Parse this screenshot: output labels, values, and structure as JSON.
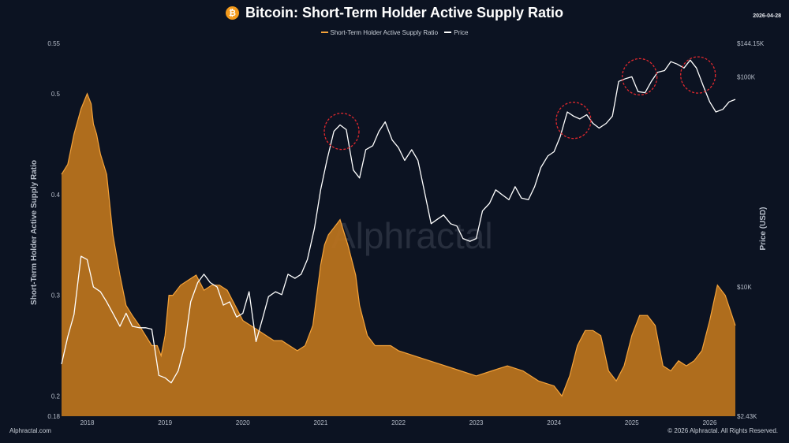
{
  "header": {
    "title": "Bitcoin: Short-Term Holder Active Supply Ratio",
    "icon": "bitcoin-icon",
    "date": "2026-04-28"
  },
  "footer": {
    "source": "Alphractal.com",
    "copyright": "© 2026 Alphractal. All Rights Reserved."
  },
  "watermark": "Alphractal",
  "colors": {
    "background": "#0c1322",
    "ratio_fill": "#b8721e",
    "ratio_line": "#f5a33a",
    "price_line": "#ffffff",
    "highlight": "#e0282e"
  },
  "chart_data": {
    "type": "area",
    "title": "Bitcoin: Short-Term Holder Active Supply Ratio",
    "legend": [
      "Short-Term Holder Active Supply Ratio",
      "Price"
    ],
    "legend_position": "top-center",
    "x_ticks": [
      "2018",
      "2019",
      "2020",
      "2021",
      "2022",
      "2023",
      "2024",
      "2025",
      "2026"
    ],
    "xlim": [
      2017.67,
      2026.33
    ],
    "left_axis": {
      "label": "Short-Term Holder Active Supply Ratio",
      "ylim": [
        0.18,
        0.55
      ],
      "ticks": [
        {
          "value": 0.55,
          "label": "0.55"
        },
        {
          "value": 0.5,
          "label": "0.5"
        },
        {
          "value": 0.4,
          "label": "0.4"
        },
        {
          "value": 0.3,
          "label": "0.3"
        },
        {
          "value": 0.2,
          "label": "0.2"
        },
        {
          "value": 0.18,
          "label": "0.18"
        }
      ]
    },
    "right_axis": {
      "label": "Price (USD)",
      "scale": "log",
      "ylim": [
        2430,
        144150
      ],
      "ticks": [
        {
          "value": 144150,
          "label": "$144.15K"
        },
        {
          "value": 100000,
          "label": "$100K"
        },
        {
          "value": 10000,
          "label": "$10K"
        },
        {
          "value": 2430,
          "label": "$2.43K"
        }
      ]
    },
    "series": [
      {
        "name": "Short-Term Holder Active Supply Ratio",
        "axis": "left",
        "x": [
          2017.67,
          2017.75,
          2017.83,
          2017.92,
          2018.0,
          2018.05,
          2018.08,
          2018.12,
          2018.17,
          2018.25,
          2018.33,
          2018.42,
          2018.5,
          2018.58,
          2018.67,
          2018.75,
          2018.83,
          2018.9,
          2018.95,
          2019.0,
          2019.05,
          2019.1,
          2019.2,
          2019.3,
          2019.4,
          2019.5,
          2019.6,
          2019.7,
          2019.8,
          2019.9,
          2020.0,
          2020.1,
          2020.2,
          2020.3,
          2020.4,
          2020.5,
          2020.6,
          2020.7,
          2020.8,
          2020.9,
          2021.0,
          2021.05,
          2021.1,
          2021.2,
          2021.25,
          2021.35,
          2021.45,
          2021.5,
          2021.6,
          2021.7,
          2021.8,
          2021.9,
          2022.0,
          2022.2,
          2022.4,
          2022.6,
          2022.8,
          2023.0,
          2023.2,
          2023.4,
          2023.6,
          2023.8,
          2024.0,
          2024.1,
          2024.2,
          2024.3,
          2024.4,
          2024.5,
          2024.6,
          2024.7,
          2024.8,
          2024.9,
          2025.0,
          2025.1,
          2025.2,
          2025.3,
          2025.4,
          2025.5,
          2025.6,
          2025.7,
          2025.8,
          2025.9,
          2026.0,
          2026.1,
          2026.2,
          2026.33
        ],
        "values": [
          0.42,
          0.43,
          0.46,
          0.485,
          0.5,
          0.49,
          0.47,
          0.46,
          0.44,
          0.42,
          0.36,
          0.32,
          0.29,
          0.28,
          0.27,
          0.26,
          0.25,
          0.25,
          0.24,
          0.26,
          0.3,
          0.3,
          0.31,
          0.315,
          0.32,
          0.305,
          0.31,
          0.31,
          0.305,
          0.29,
          0.275,
          0.27,
          0.265,
          0.26,
          0.255,
          0.255,
          0.25,
          0.245,
          0.25,
          0.27,
          0.33,
          0.35,
          0.36,
          0.37,
          0.375,
          0.35,
          0.32,
          0.29,
          0.26,
          0.25,
          0.25,
          0.25,
          0.245,
          0.24,
          0.235,
          0.23,
          0.225,
          0.22,
          0.225,
          0.23,
          0.225,
          0.215,
          0.21,
          0.2,
          0.22,
          0.25,
          0.265,
          0.265,
          0.26,
          0.225,
          0.215,
          0.23,
          0.26,
          0.28,
          0.28,
          0.27,
          0.23,
          0.225,
          0.235,
          0.23,
          0.235,
          0.245,
          0.275,
          0.31,
          0.3,
          0.27
        ]
      },
      {
        "name": "Price",
        "axis": "right",
        "x": [
          2017.67,
          2017.75,
          2017.83,
          2017.92,
          2018.0,
          2018.08,
          2018.17,
          2018.25,
          2018.33,
          2018.42,
          2018.5,
          2018.58,
          2018.67,
          2018.75,
          2018.83,
          2018.92,
          2019.0,
          2019.08,
          2019.17,
          2019.25,
          2019.33,
          2019.42,
          2019.5,
          2019.58,
          2019.67,
          2019.75,
          2019.83,
          2019.92,
          2020.0,
          2020.08,
          2020.17,
          2020.25,
          2020.33,
          2020.42,
          2020.5,
          2020.58,
          2020.67,
          2020.75,
          2020.83,
          2020.92,
          2021.0,
          2021.08,
          2021.17,
          2021.25,
          2021.33,
          2021.42,
          2021.5,
          2021.58,
          2021.67,
          2021.75,
          2021.83,
          2021.92,
          2022.0,
          2022.08,
          2022.17,
          2022.25,
          2022.33,
          2022.42,
          2022.5,
          2022.58,
          2022.67,
          2022.75,
          2022.83,
          2022.92,
          2023.0,
          2023.08,
          2023.17,
          2023.25,
          2023.33,
          2023.42,
          2023.5,
          2023.58,
          2023.67,
          2023.75,
          2023.83,
          2023.92,
          2024.0,
          2024.08,
          2024.17,
          2024.25,
          2024.33,
          2024.42,
          2024.5,
          2024.58,
          2024.67,
          2024.75,
          2024.83,
          2024.92,
          2025.0,
          2025.08,
          2025.17,
          2025.25,
          2025.33,
          2025.42,
          2025.5,
          2025.58,
          2025.67,
          2025.75,
          2025.83,
          2025.92,
          2026.0,
          2026.08,
          2026.17,
          2026.25,
          2026.33
        ],
        "values": [
          4300,
          5800,
          7400,
          14000,
          13500,
          10000,
          9500,
          8500,
          7500,
          6500,
          7500,
          6500,
          6400,
          6400,
          6300,
          3800,
          3700,
          3500,
          4000,
          5200,
          8500,
          10500,
          11500,
          10500,
          10000,
          8200,
          8500,
          7200,
          7500,
          9500,
          5500,
          7000,
          9000,
          9500,
          9200,
          11500,
          11000,
          11500,
          13500,
          19000,
          29000,
          40000,
          55000,
          59000,
          56000,
          36000,
          33000,
          45000,
          47000,
          55000,
          61000,
          50000,
          46000,
          40000,
          45000,
          40000,
          29000,
          20000,
          21000,
          22000,
          20000,
          19500,
          17000,
          16500,
          17000,
          23000,
          25000,
          29000,
          27500,
          26000,
          30000,
          26500,
          26000,
          30000,
          37000,
          42000,
          44000,
          52000,
          68000,
          65000,
          63000,
          66000,
          60000,
          57000,
          60000,
          65000,
          95000,
          98000,
          100000,
          85000,
          84000,
          95000,
          105000,
          107000,
          118000,
          115000,
          110000,
          120000,
          110000,
          90000,
          76000,
          68000,
          70000,
          76000,
          78000
        ]
      }
    ],
    "highlights": [
      {
        "x": 2021.27,
        "price": 55000
      },
      {
        "x": 2024.25,
        "price": 62000
      },
      {
        "x": 2025.1,
        "price": 100000
      },
      {
        "x": 2025.85,
        "price": 102000
      }
    ]
  }
}
